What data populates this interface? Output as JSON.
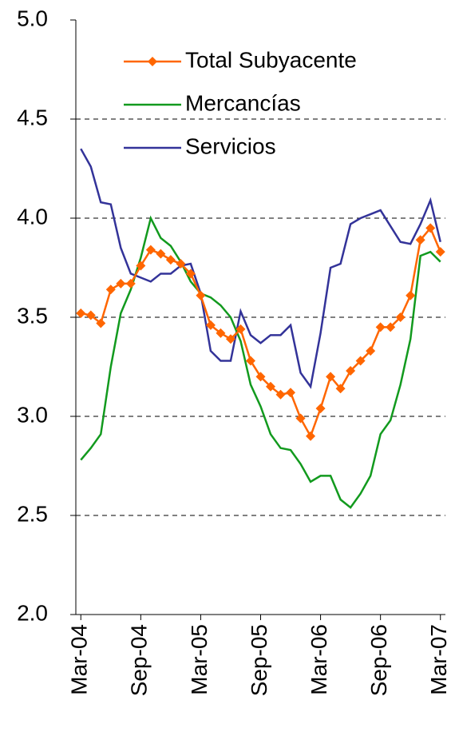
{
  "chart_data": {
    "type": "line",
    "categories": [
      "Mar-04",
      null,
      null,
      null,
      null,
      null,
      "Sep-04",
      null,
      null,
      null,
      null,
      null,
      "Mar-05",
      null,
      null,
      null,
      null,
      null,
      "Sep-05",
      null,
      null,
      null,
      null,
      null,
      "Mar-06",
      null,
      null,
      null,
      null,
      null,
      "Sep-06",
      null,
      null,
      null,
      null,
      null,
      "Mar-07"
    ],
    "series": [
      {
        "name": "Total Subyacente",
        "color": "#ff6600",
        "marker": "diamond",
        "values": [
          3.52,
          3.51,
          3.47,
          3.64,
          3.67,
          3.67,
          3.76,
          3.84,
          3.82,
          3.79,
          3.77,
          3.72,
          3.61,
          3.46,
          3.42,
          3.39,
          3.44,
          3.28,
          3.2,
          3.15,
          3.11,
          3.12,
          2.99,
          2.9,
          3.04,
          3.2,
          3.14,
          3.23,
          3.28,
          3.33,
          3.45,
          3.45,
          3.5,
          3.61,
          3.89,
          3.95,
          3.83
        ]
      },
      {
        "name": "Mercancías",
        "color": "#129a1e",
        "values": [
          2.78,
          2.84,
          2.91,
          3.25,
          3.52,
          3.64,
          3.8,
          4.0,
          3.9,
          3.86,
          3.78,
          3.68,
          3.62,
          3.6,
          3.56,
          3.5,
          3.38,
          3.16,
          3.05,
          2.91,
          2.84,
          2.83,
          2.76,
          2.67,
          2.7,
          2.7,
          2.58,
          2.54,
          2.61,
          2.7,
          2.91,
          2.98,
          3.16,
          3.39,
          3.81,
          3.83,
          3.78
        ]
      },
      {
        "name": "Servicios",
        "color": "#333399",
        "values": [
          4.35,
          4.26,
          4.08,
          4.07,
          3.85,
          3.72,
          3.7,
          3.68,
          3.72,
          3.72,
          3.76,
          3.77,
          3.62,
          3.33,
          3.28,
          3.28,
          3.53,
          3.41,
          3.37,
          3.41,
          3.41,
          3.46,
          3.22,
          3.15,
          3.42,
          3.75,
          3.77,
          3.97,
          4.0,
          4.02,
          4.04,
          3.96,
          3.88,
          3.87,
          3.97,
          4.09,
          3.88
        ]
      }
    ],
    "ylim": [
      2,
      5
    ],
    "yticks": [
      {
        "value": 2,
        "label": "2.0"
      },
      2.5,
      {
        "value": 3,
        "label": "3.0"
      },
      3.5,
      {
        "value": 4,
        "label": "4.0"
      },
      4.5,
      {
        "value": 5,
        "label": "5.0"
      }
    ],
    "grid": true,
    "legend": "top-right"
  }
}
